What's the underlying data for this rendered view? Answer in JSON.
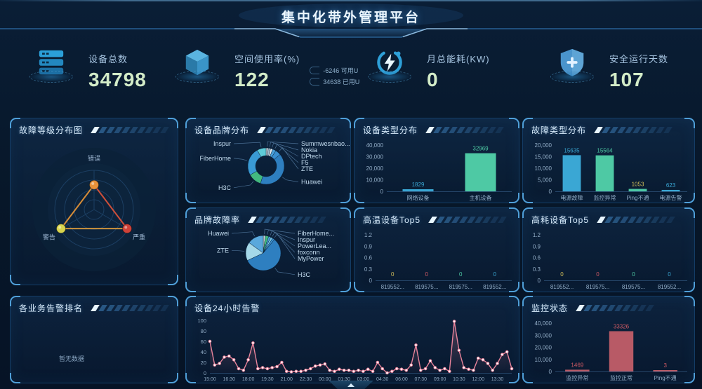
{
  "header": {
    "title": "集中化带外管理平台"
  },
  "theme": {
    "accent_blue": "#3aa7d4",
    "accent_green": "#4ec9a4",
    "accent_rose": "#d05a64",
    "line_pink": "#e8839b",
    "number_color": "#d3ecc8",
    "panel_border": "#143d66"
  },
  "kpis": [
    {
      "icon": "server-icon",
      "label": "设备总数",
      "value": "34798"
    },
    {
      "icon": "cube-icon",
      "label": "空间使用率(%)",
      "value": "122",
      "extra": [
        "-6246 可用U",
        "34638 已用U"
      ]
    },
    {
      "icon": "energy-icon",
      "label": "月总能耗(KW)",
      "value": "0"
    },
    {
      "icon": "shield-icon",
      "label": "安全运行天数",
      "value": "107"
    }
  ],
  "panels": {
    "fault_level": {
      "title": "故障等级分布图"
    },
    "brand_dist": {
      "title": "设备品牌分布"
    },
    "device_type": {
      "title": "设备类型分布"
    },
    "fault_type": {
      "title": "故障类型分布"
    },
    "brand_fault_rate": {
      "title": "品牌故障率"
    },
    "high_temp": {
      "title": "高温设备Top5"
    },
    "high_power": {
      "title": "高耗设备Top5"
    },
    "biz_alarm": {
      "title": "各业务告警排名",
      "empty_text": "暂无数据"
    },
    "alarm_24h": {
      "title": "设备24小时告警"
    },
    "monitor_status": {
      "title": "监控状态"
    }
  },
  "chart_data": [
    {
      "id": "fault_level",
      "type": "radar",
      "title": "故障等级分布图",
      "axes": [
        "错误",
        "警告",
        "严重"
      ],
      "values": [
        63,
        97,
        97
      ],
      "max": 100,
      "point_colors": [
        "#e8923a",
        "#d8d44e",
        "#d04238"
      ],
      "line_colors": [
        "#e09238",
        "#d9523a",
        "#d89a3c"
      ]
    },
    {
      "id": "brand_dist",
      "type": "donut",
      "title": "设备品牌分布",
      "slices": [
        {
          "label": "Summwesnbao...",
          "value": 2,
          "color": "#cfd8e0"
        },
        {
          "label": "Nokia",
          "value": 2,
          "color": "#9fb6c8"
        },
        {
          "label": "DPtech",
          "value": 2,
          "color": "#e8eef2"
        },
        {
          "label": "F5",
          "value": 3,
          "color": "#4a9fd8"
        },
        {
          "label": "ZTE",
          "value": 5,
          "color": "#3a8fd0"
        },
        {
          "label": "Huawei",
          "value": 41,
          "color": "#2e7fc0"
        },
        {
          "label": "H3C",
          "value": 12,
          "color": "#43b97f"
        },
        {
          "label": "FiberHome",
          "value": 25,
          "color": "#3a9ad4"
        },
        {
          "label": "Inspur",
          "value": 8,
          "color": "#5ecbd8"
        }
      ]
    },
    {
      "id": "device_type",
      "type": "bar",
      "title": "设备类型分布",
      "categories": [
        "网络设备",
        "主机设备"
      ],
      "values": [
        1829,
        32969
      ],
      "colors": [
        "#3aa7d4",
        "#4ec9a4"
      ],
      "ylim": [
        0,
        40000
      ],
      "yticks": [
        0,
        10000,
        20000,
        30000,
        40000
      ]
    },
    {
      "id": "fault_type",
      "type": "bar",
      "title": "故障类型分布",
      "categories": [
        "电源故障",
        "监控异常",
        "Ping不通",
        "电源告警"
      ],
      "values": [
        15635,
        15564,
        1053,
        623
      ],
      "colors": [
        "#3aa7d4",
        "#4ec9a4",
        "#4ec9a4",
        "#3aa7d4"
      ],
      "value_colors": [
        "#3aa7d4",
        "#4ec9a4",
        "#d4c05a",
        "#3aa7d4"
      ],
      "ylim": [
        0,
        20000
      ],
      "yticks": [
        0,
        5000,
        10000,
        15000,
        20000
      ]
    },
    {
      "id": "brand_fault_rate",
      "type": "pie",
      "title": "品牌故障率",
      "slices": [
        {
          "label": "FiberHome...",
          "value": 2,
          "color": "#cfd8e0"
        },
        {
          "label": "Inspur",
          "value": 3,
          "color": "#43b97f"
        },
        {
          "label": "PowerLea...",
          "value": 2,
          "color": "#4a9fd8"
        },
        {
          "label": "foxconn",
          "value": 2,
          "color": "#76c4e8"
        },
        {
          "label": "MyPower",
          "value": 2,
          "color": "#3a8fd0"
        },
        {
          "label": "H3C",
          "value": 57,
          "color": "#2e7fc0"
        },
        {
          "label": "ZTE",
          "value": 17,
          "color": "#a5d8e8"
        },
        {
          "label": "Huawei",
          "value": 15,
          "color": "#5aa8dc"
        }
      ]
    },
    {
      "id": "high_temp",
      "type": "bar",
      "title": "高温设备Top5",
      "categories": [
        "819552...",
        "819575...",
        "819575...",
        "819552..."
      ],
      "values": [
        0,
        0,
        0,
        0
      ],
      "colors": [
        "#d4c05a",
        "#d05a64",
        "#4ec9a4",
        "#3aa7d4"
      ],
      "ylim": [
        0,
        1.2
      ],
      "yticks": [
        0,
        0.3,
        0.6,
        0.9,
        1.2
      ]
    },
    {
      "id": "high_power",
      "type": "bar",
      "title": "高耗设备Top5",
      "categories": [
        "819552...",
        "819575...",
        "819575...",
        "819552..."
      ],
      "values": [
        0,
        0,
        0,
        0
      ],
      "colors": [
        "#d4c05a",
        "#d05a64",
        "#4ec9a4",
        "#3aa7d4"
      ],
      "ylim": [
        0,
        1.2
      ],
      "yticks": [
        0,
        0.3,
        0.6,
        0.9,
        1.2
      ]
    },
    {
      "id": "alarm_24h",
      "type": "line",
      "title": "设备24小时告警",
      "color": "#e8839b",
      "ylim": [
        0,
        100
      ],
      "yticks": [
        0,
        20,
        40,
        60,
        80,
        100
      ],
      "x_labels": [
        "15:00",
        "16:30",
        "18:00",
        "19:30",
        "21:00",
        "22:30",
        "00:00",
        "01:30",
        "03:00",
        "04:30",
        "06:00",
        "07:30",
        "09:00",
        "10:30",
        "12:00",
        "13:30"
      ],
      "values": [
        60,
        15,
        18,
        30,
        32,
        25,
        8,
        5,
        25,
        57,
        8,
        10,
        8,
        10,
        12,
        20,
        3,
        2,
        3,
        3,
        5,
        8,
        13,
        15,
        17,
        5,
        3,
        7,
        5,
        5,
        3,
        5,
        3,
        7,
        3,
        20,
        8,
        0,
        3,
        8,
        7,
        5,
        15,
        53,
        5,
        8,
        23,
        10,
        5,
        8,
        3,
        98,
        43,
        10,
        7,
        5,
        28,
        25,
        18,
        5,
        18,
        35,
        40,
        8
      ]
    },
    {
      "id": "monitor_status",
      "type": "bar",
      "title": "监控状态",
      "categories": [
        "监控异常",
        "监控正常",
        "Ping不通"
      ],
      "values": [
        1469,
        33326,
        3
      ],
      "colors": [
        "#b85a66",
        "#b85a66",
        "#b85a66"
      ],
      "value_colors": [
        "#d05a64",
        "#d05a64",
        "#d05a64"
      ],
      "ylim": [
        0,
        40000
      ],
      "yticks": [
        0,
        10000,
        20000,
        30000,
        40000
      ]
    }
  ]
}
